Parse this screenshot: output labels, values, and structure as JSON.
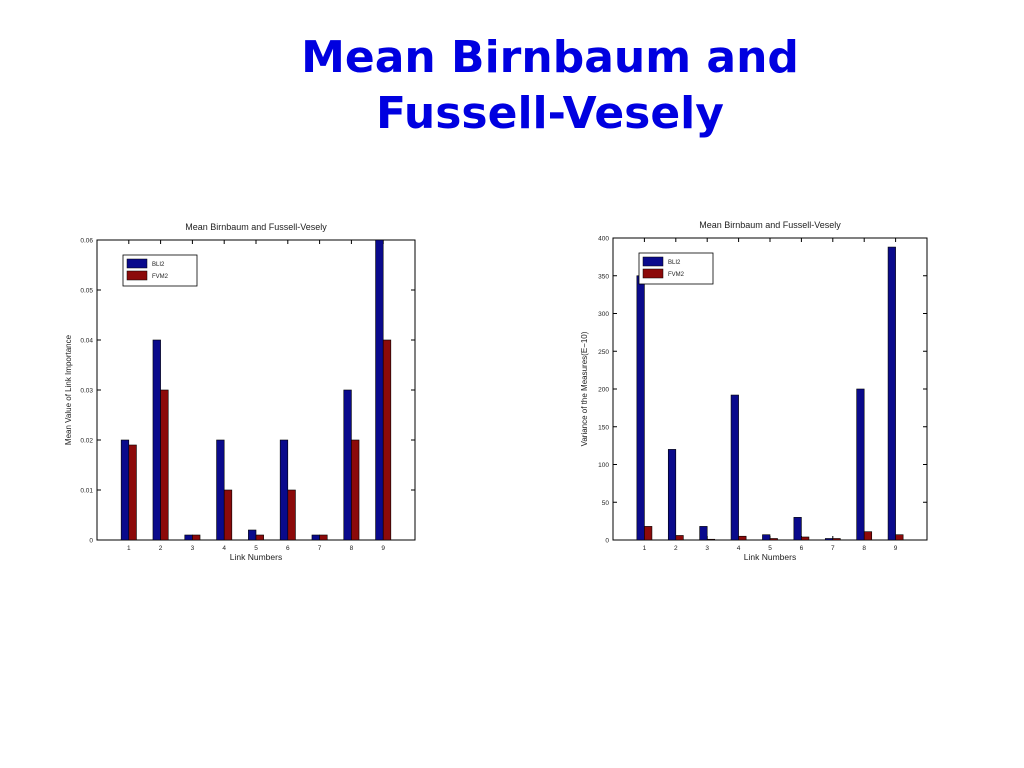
{
  "slide": {
    "title_line1": "Mean Birnbaum and",
    "title_line2": "Fussell-Vesely"
  },
  "chart_data": [
    {
      "type": "bar",
      "title": "Mean Birnbaum and Fussell-Vesely",
      "xlabel": "Link Numbers",
      "ylabel": "Mean Value of Link Importance",
      "categories": [
        "1",
        "2",
        "3",
        "4",
        "5",
        "6",
        "7",
        "8",
        "9"
      ],
      "ylim": [
        0,
        0.06
      ],
      "yticks": [
        0,
        0.01,
        0.02,
        0.03,
        0.04,
        0.05,
        0.06
      ],
      "ytick_labels": [
        "0",
        "0.01",
        "0.02",
        "0.03",
        "0.04",
        "0.05",
        "0.06"
      ],
      "legend_position": "top-left",
      "grid": false,
      "series": [
        {
          "name": "BLI2",
          "color": "#0a0a8c",
          "values": [
            0.02,
            0.04,
            0.001,
            0.02,
            0.002,
            0.02,
            0.001,
            0.03,
            0.06
          ]
        },
        {
          "name": "FVM2",
          "color": "#8c0a0a",
          "values": [
            0.019,
            0.03,
            0.001,
            0.01,
            0.001,
            0.01,
            0.001,
            0.02,
            0.04
          ]
        }
      ]
    },
    {
      "type": "bar",
      "title": "Mean Birnbaum and Fussell-Vesely",
      "xlabel": "Link Numbers",
      "ylabel": "Variance of the Measures(E−10)",
      "categories": [
        "1",
        "2",
        "3",
        "4",
        "5",
        "6",
        "7",
        "8",
        "9"
      ],
      "ylim": [
        0,
        400
      ],
      "yticks": [
        0,
        50,
        100,
        150,
        200,
        250,
        300,
        350,
        400
      ],
      "ytick_labels": [
        "0",
        "50",
        "100",
        "150",
        "200",
        "250",
        "300",
        "350",
        "400"
      ],
      "legend_position": "top-left",
      "grid": false,
      "series": [
        {
          "name": "BLI2",
          "color": "#0a0a8c",
          "values": [
            350,
            120,
            18,
            192,
            7,
            30,
            2,
            200,
            388
          ]
        },
        {
          "name": "FVM2",
          "color": "#8c0a0a",
          "values": [
            18,
            6,
            1,
            5,
            2,
            4,
            2,
            11,
            7
          ]
        }
      ]
    }
  ]
}
